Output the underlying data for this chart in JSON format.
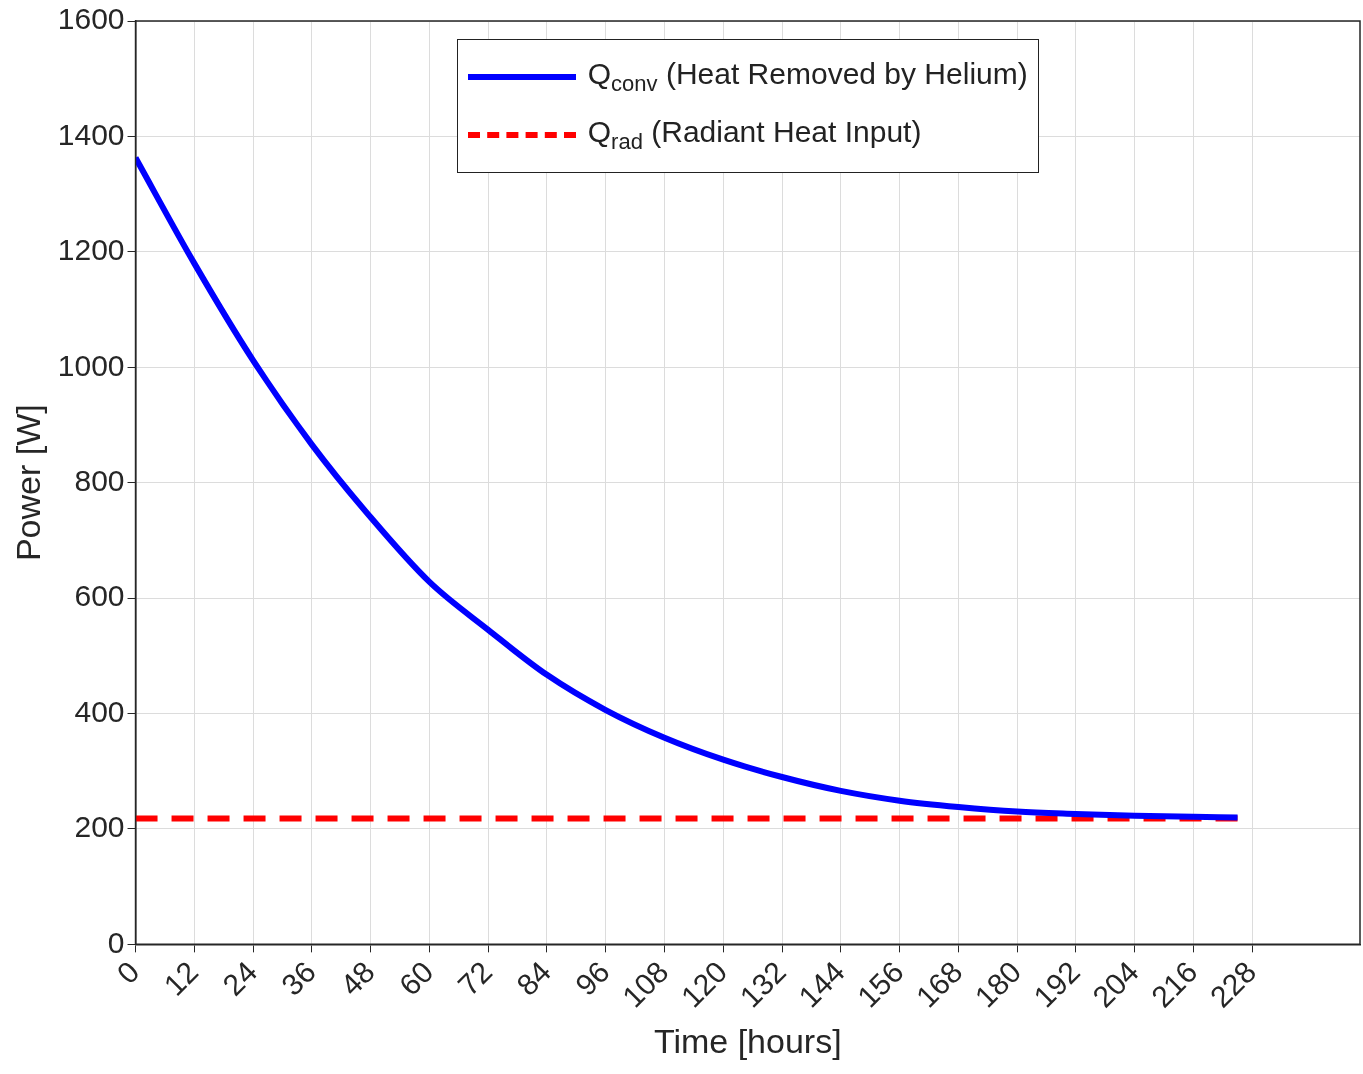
{
  "chart_data": {
    "type": "line",
    "xlabel": "Time [hours]",
    "ylabel": "Power [W]",
    "xlim": [
      0,
      250
    ],
    "xticks": [
      0,
      12,
      24,
      36,
      48,
      60,
      72,
      84,
      96,
      108,
      120,
      132,
      144,
      156,
      168,
      180,
      192,
      204,
      216,
      228
    ],
    "ylim": [
      0,
      1600
    ],
    "yticks": [
      0,
      200,
      400,
      600,
      800,
      1000,
      1200,
      1400,
      1600
    ],
    "grid": true,
    "legend": "top",
    "marker": "none",
    "series": [
      {
        "name": "Q$_{conv}$ (Heat Removed by Helium)",
        "color": "#0000ff",
        "line_style": "solid",
        "x": [
          0,
          12,
          24,
          36,
          48,
          60,
          72,
          84,
          96,
          108,
          120,
          132,
          144,
          156,
          168,
          180,
          192,
          204,
          216,
          225
        ],
        "values": [
          1363,
          1180,
          1012,
          866,
          740,
          628,
          545,
          467,
          406,
          358,
          320,
          290,
          266,
          249,
          238,
          230,
          226,
          223,
          221,
          220
        ]
      },
      {
        "name": "Q$_{rad}$ (Radiant Heat Input)",
        "color": "#ff0000",
        "line_style": "dashed",
        "x": [
          0,
          225
        ],
        "values": [
          218,
          218
        ]
      }
    ]
  }
}
